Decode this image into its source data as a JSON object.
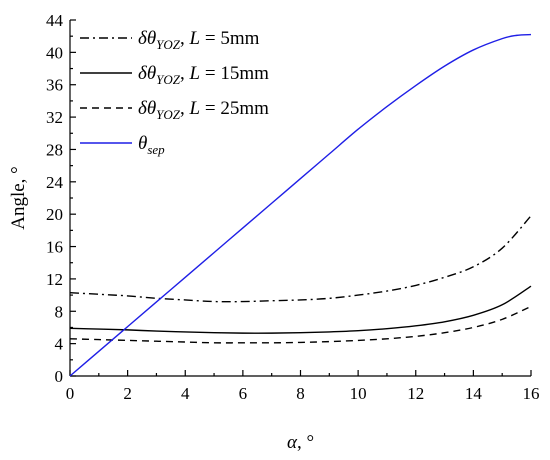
{
  "chart_data": {
    "type": "line",
    "xlabel": {
      "var": "α",
      "unit": ", °"
    },
    "ylabel": "Angle, °",
    "xlim": [
      0,
      16
    ],
    "ylim": [
      0,
      44
    ],
    "xticks": [
      0,
      2,
      4,
      6,
      8,
      10,
      12,
      14,
      16
    ],
    "yticks": [
      0,
      4,
      8,
      12,
      16,
      20,
      24,
      28,
      32,
      36,
      40,
      44
    ],
    "grid": false,
    "legend_position": "top-left",
    "series": [
      {
        "name": "δθYOZ, L = 5mm",
        "legend": {
          "prefix": "δθ",
          "sub": "YOZ",
          "mid": ", ",
          "var": "L",
          "suffix": " = 5mm"
        },
        "style": "dashdot",
        "color": "#000000",
        "x": [
          0,
          1,
          2,
          3,
          4,
          5,
          6,
          7,
          8,
          9,
          10,
          11,
          12,
          13,
          14,
          15,
          16
        ],
        "y": [
          10.3,
          10.1,
          9.9,
          9.6,
          9.4,
          9.2,
          9.2,
          9.3,
          9.4,
          9.6,
          10.0,
          10.5,
          11.2,
          12.2,
          13.5,
          15.8,
          19.8
        ]
      },
      {
        "name": "δθYOZ, L = 15mm",
        "legend": {
          "prefix": "δθ",
          "sub": "YOZ",
          "mid": ", ",
          "var": "L",
          "suffix": " = 15mm"
        },
        "style": "solid",
        "color": "#000000",
        "x": [
          0,
          1,
          2,
          3,
          4,
          5,
          6,
          7,
          8,
          9,
          10,
          11,
          12,
          13,
          14,
          15,
          16
        ],
        "y": [
          5.9,
          5.8,
          5.7,
          5.55,
          5.45,
          5.35,
          5.3,
          5.3,
          5.35,
          5.45,
          5.6,
          5.85,
          6.2,
          6.7,
          7.5,
          8.8,
          11.1
        ]
      },
      {
        "name": "δθYOZ, L = 25mm",
        "legend": {
          "prefix": "δθ",
          "sub": "YOZ",
          "mid": ", ",
          "var": "L",
          "suffix": " = 25mm"
        },
        "style": "dashed",
        "color": "#000000",
        "x": [
          0,
          1,
          2,
          3,
          4,
          5,
          6,
          7,
          8,
          9,
          10,
          11,
          12,
          13,
          14,
          15,
          16
        ],
        "y": [
          4.6,
          4.5,
          4.4,
          4.3,
          4.2,
          4.1,
          4.1,
          4.1,
          4.15,
          4.25,
          4.4,
          4.6,
          4.9,
          5.35,
          6.0,
          7.0,
          8.6
        ]
      },
      {
        "name": "θsep",
        "legend": {
          "prefix": "θ",
          "sub": "sep",
          "mid": "",
          "var": "",
          "suffix": ""
        },
        "style": "solid",
        "color": "#1f1fe6",
        "x": [
          0,
          1,
          2,
          3,
          4,
          5,
          6,
          7,
          8,
          9,
          10,
          11,
          12,
          13,
          14,
          15,
          15.5,
          16
        ],
        "y": [
          0,
          3.05,
          6.1,
          9.15,
          12.2,
          15.25,
          18.3,
          21.35,
          24.4,
          27.45,
          30.5,
          33.3,
          35.9,
          38.3,
          40.3,
          41.7,
          42.1,
          42.2
        ]
      }
    ]
  }
}
